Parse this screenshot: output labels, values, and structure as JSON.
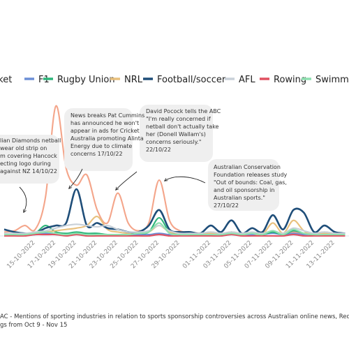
{
  "chart_data": {
    "type": "line",
    "categories": [
      null,
      null,
      null,
      "15-10-2022",
      null,
      "17-10-2022",
      null,
      "19-10-2022",
      null,
      "21-10-2022",
      null,
      "23-10-2022",
      null,
      "25-10-2022",
      null,
      "27-10-2022",
      null,
      "29-10-2022",
      null,
      null,
      "01-11-2022",
      null,
      "03-11-2022",
      null,
      "05-11-2022",
      null,
      "07-11-2022",
      null,
      "09-11-2022",
      null,
      "11-11-2022",
      null,
      "13-11-2022",
      null
    ],
    "ylim": [
      0,
      100
    ],
    "series": [
      {
        "name": "Cricket",
        "color": "#f4a58a",
        "values": [
          3,
          4,
          8,
          5,
          30,
          100,
          52,
          39,
          47,
          20,
          10,
          33,
          10,
          4,
          10,
          43,
          12,
          4,
          3,
          2,
          3,
          2,
          3,
          2,
          2,
          3,
          2,
          2,
          3,
          2,
          2,
          3,
          2,
          2
        ]
      },
      {
        "name": "F1",
        "color": "#6c8fd6",
        "values": [
          1,
          1,
          1,
          1,
          2,
          1,
          1,
          2,
          1,
          1,
          1,
          1,
          1,
          1,
          1,
          2,
          1,
          1,
          1,
          1,
          1,
          1,
          2,
          1,
          1,
          1,
          2,
          1,
          2,
          1,
          1,
          1,
          1,
          1
        ]
      },
      {
        "name": "Rugby Union",
        "color": "#2db57a",
        "values": [
          2,
          1,
          1,
          2,
          8,
          3,
          2,
          3,
          2,
          2,
          1,
          1,
          1,
          2,
          3,
          14,
          3,
          1,
          1,
          1,
          2,
          1,
          3,
          1,
          2,
          1,
          3,
          1,
          4,
          2,
          1,
          2,
          1,
          1
        ]
      },
      {
        "name": "NRL",
        "color": "#e8c07d",
        "values": [
          1,
          1,
          1,
          2,
          3,
          4,
          5,
          6,
          8,
          15,
          5,
          3,
          2,
          2,
          3,
          8,
          3,
          2,
          1,
          1,
          2,
          1,
          3,
          1,
          2,
          1,
          10,
          2,
          12,
          4,
          1,
          2,
          1,
          1
        ]
      },
      {
        "name": "Football/soccer",
        "color": "#1f4e79",
        "values": [
          5,
          3,
          2,
          2,
          6,
          8,
          10,
          36,
          8,
          10,
          6,
          5,
          3,
          3,
          8,
          20,
          5,
          3,
          3,
          2,
          8,
          3,
          12,
          2,
          6,
          3,
          16,
          5,
          20,
          18,
          3,
          8,
          3,
          2
        ]
      },
      {
        "name": "AFL",
        "color": "#c8d0d8",
        "values": [
          2,
          2,
          2,
          3,
          4,
          6,
          8,
          9,
          8,
          7,
          8,
          5,
          3,
          3,
          4,
          8,
          4,
          2,
          2,
          2,
          3,
          2,
          3,
          2,
          3,
          2,
          4,
          2,
          6,
          4,
          2,
          3,
          2,
          2
        ]
      },
      {
        "name": "Rowing",
        "color": "#e05060",
        "values": [
          0,
          0,
          0,
          1,
          1,
          1,
          0,
          1,
          0,
          0,
          0,
          0,
          0,
          0,
          0,
          1,
          0,
          0,
          0,
          0,
          0,
          0,
          1,
          0,
          0,
          0,
          0,
          0,
          1,
          0,
          0,
          0,
          0,
          0
        ]
      },
      {
        "name": "Swimming",
        "color": "#8fe0b0",
        "values": [
          1,
          1,
          1,
          2,
          3,
          2,
          1,
          2,
          1,
          1,
          1,
          1,
          1,
          2,
          3,
          10,
          2,
          1,
          1,
          1,
          1,
          1,
          2,
          1,
          2,
          1,
          4,
          1,
          5,
          2,
          1,
          1,
          1,
          1
        ]
      }
    ],
    "annotations": [
      {
        "lines": [
          "lian Diamonds netball",
          "wear old strip on",
          "m covering Hancock",
          "ecting logo during",
          "against NZ 14/10/22"
        ]
      },
      {
        "lines": [
          "News breaks Pat Cummins",
          "has announced he won't",
          "appear in ads for Cricket",
          "Australia promoting Alinta",
          "Energy due to climate",
          "concerns 17/10/22"
        ]
      },
      {
        "lines": [
          "David Pocock tells the ABC",
          "\"I'm really concerned if",
          "netball don't actually take",
          "her (Donell Wallam's)",
          "concerns seriously.\"",
          "22/10/22"
        ]
      },
      {
        "lines": [
          "Australian Conservation",
          "Foundation releases study",
          "\"Out of bounds: Coal, gas,",
          "and oil sponsorship in",
          "Australian sports.\"",
          " 27/10/22"
        ]
      }
    ],
    "caption": [
      "AC - Mentions of sporting industries in relation to sports sponsorship controversies across Australian online news, Reddit, Twitter,",
      "gs from Oct 9 - Nov 15"
    ]
  }
}
